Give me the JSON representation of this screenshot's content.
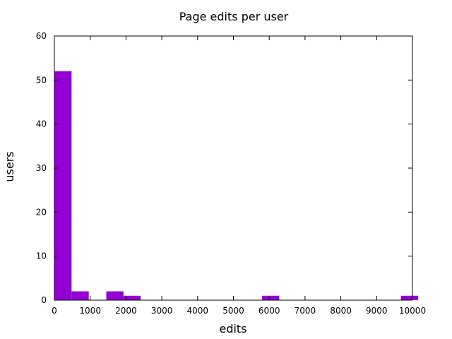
{
  "chart_data": {
    "type": "bar",
    "title": "Page edits per user",
    "xlabel": "edits",
    "ylabel": "users",
    "xlim": [
      0,
      10000
    ],
    "ylim": [
      0,
      60
    ],
    "grid": false,
    "legend": "none",
    "bar_color": "#9400d3",
    "bin_width": 480,
    "bins": [
      {
        "x": 0,
        "count": 52
      },
      {
        "x": 480,
        "count": 2
      },
      {
        "x": 1450,
        "count": 2
      },
      {
        "x": 1930,
        "count": 1
      },
      {
        "x": 5800,
        "count": 1
      },
      {
        "x": 9680,
        "count": 1
      }
    ],
    "x_ticks": [
      "0",
      "1000",
      "2000",
      "3000",
      "4000",
      "5000",
      "6000",
      "7000",
      "8000",
      "9000",
      "10000"
    ],
    "y_ticks": [
      "0",
      "10",
      "20",
      "30",
      "40",
      "50",
      "60"
    ]
  }
}
